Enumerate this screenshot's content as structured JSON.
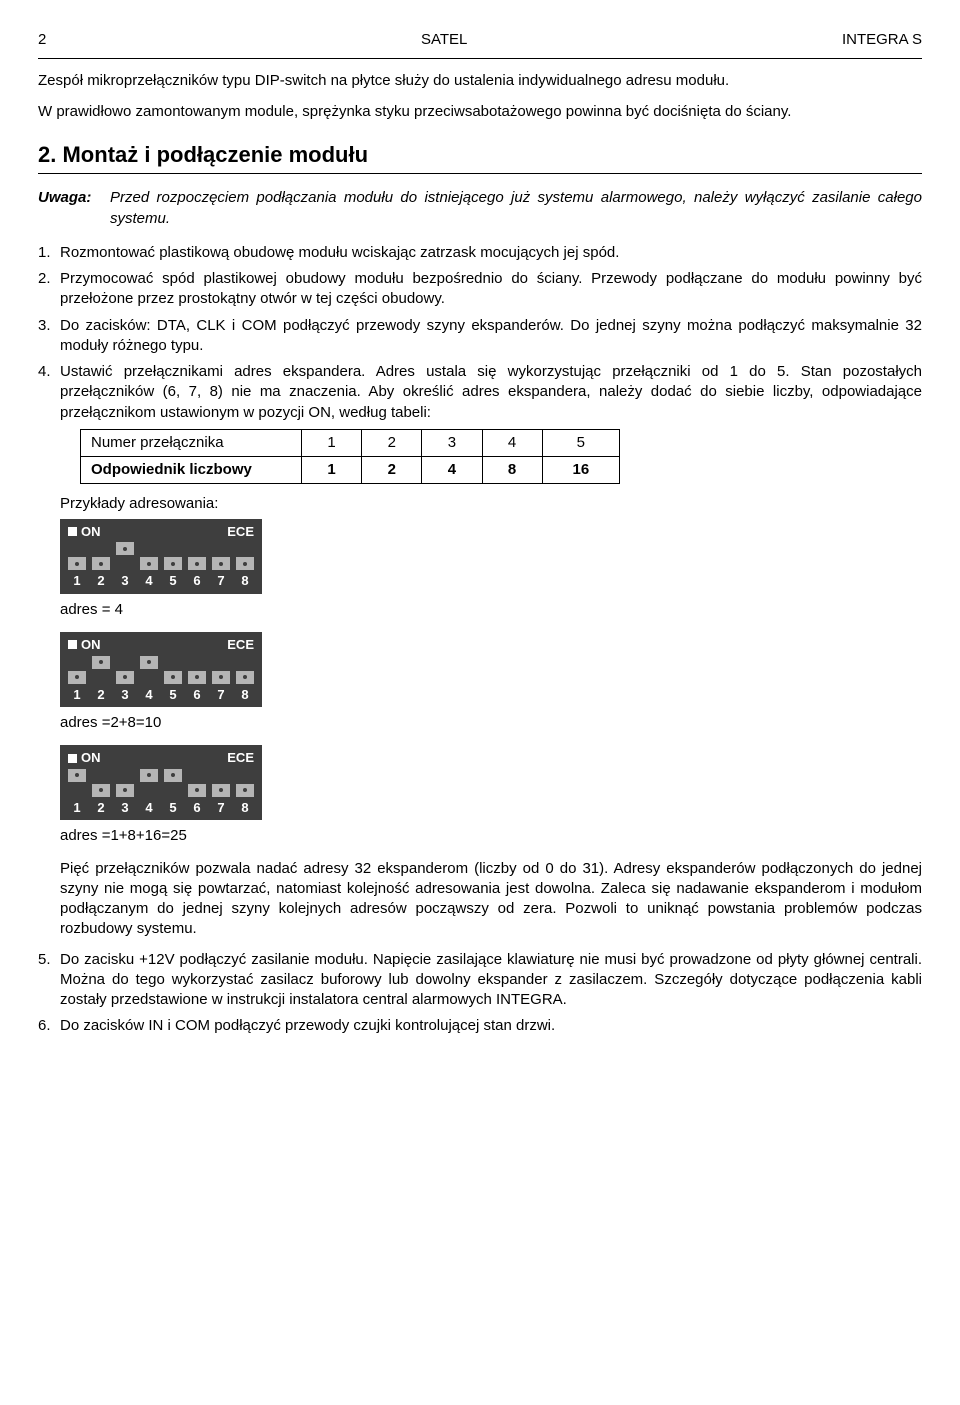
{
  "header": {
    "page": "2",
    "center": "SATEL",
    "right": "INTEGRA S"
  },
  "intro": [
    "Zespół mikroprzełączników typu DIP-switch na płytce służy do ustalenia indywidualnego adresu modułu.",
    "W prawidłowo zamontowanym module, sprężynka styku przeciwsabotażowego powinna być dociśnięta do ściany."
  ],
  "section": {
    "number": "2.",
    "title": "Montaż i podłączenie modułu"
  },
  "uwaga": {
    "label": "Uwaga:",
    "text": "Przed rozpoczęciem podłączania modułu do istniejącego już systemu alarmowego, należy wyłączyć zasilanie całego systemu."
  },
  "steps": [
    {
      "n": "1.",
      "t": "Rozmontować plastikową obudowę modułu wciskając zatrzask mocujących jej spód."
    },
    {
      "n": "2.",
      "t": "Przymocować spód plastikowej obudowy modułu bezpośrednio do ściany. Przewody podłączane do modułu powinny być przełożone przez prostokątny otwór w tej części obudowy."
    },
    {
      "n": "3.",
      "t": "Do zacisków: DTA, CLK i COM podłączyć przewody szyny ekspanderów. Do jednej szyny można podłączyć maksymalnie 32 moduły różnego typu."
    },
    {
      "n": "4.",
      "t": "Ustawić przełącznikami adres ekspandera. Adres ustala się wykorzystując przełączniki od 1 do 5. Stan pozostałych przełączników (6, 7, 8) nie ma znaczenia. Aby określić adres ekspandera, należy dodać do siebie liczby, odpowiadające przełącznikom ustawionym w pozycji ON, według tabeli:"
    }
  ],
  "table": {
    "row1": [
      "Numer przełącznika",
      "1",
      "2",
      "3",
      "4",
      "5"
    ],
    "row2": [
      "Odpowiednik liczbowy",
      "1",
      "2",
      "4",
      "8",
      "16"
    ]
  },
  "examples_label": "Przykłady adresowania:",
  "dip_labels": {
    "on": "ON",
    "ece": "ECE",
    "nums": [
      "1",
      "2",
      "3",
      "4",
      "5",
      "6",
      "7",
      "8"
    ]
  },
  "dips": [
    {
      "on": [
        false,
        false,
        true,
        false,
        false,
        false,
        false,
        false
      ],
      "caption": "adres = 4"
    },
    {
      "on": [
        false,
        true,
        false,
        true,
        false,
        false,
        false,
        false
      ],
      "caption": "adres =2+8=10"
    },
    {
      "on": [
        true,
        false,
        false,
        true,
        true,
        false,
        false,
        false
      ],
      "caption": "adres =1+8+16=25"
    }
  ],
  "after_dips": "Pięć przełączników pozwala nadać adresy 32 ekspanderom (liczby od 0 do 31). Adresy ekspanderów podłączonych do jednej szyny nie mogą się powtarzać, natomiast kolejność adresowania jest dowolna. Zaleca się nadawanie ekspanderom i modułom podłączanym do jednej szyny kolejnych adresów począwszy od zera. Pozwoli to uniknąć powstania problemów podczas rozbudowy systemu.",
  "steps2": [
    {
      "n": "5.",
      "t": "Do zacisku +12V podłączyć zasilanie modułu. Napięcie zasilające klawiaturę nie musi być prowadzone od płyty głównej centrali. Można do tego wykorzystać zasilacz buforowy lub dowolny ekspander z zasilaczem. Szczegóły dotyczące podłączenia kabli zostały przedstawione w instrukcji instalatora central alarmowych INTEGRA."
    },
    {
      "n": "6.",
      "t": "Do zacisków IN i COM podłączyć przewody czujki kontrolującej stan drzwi."
    }
  ],
  "colors": {
    "dip_bg": "#3e3e3e",
    "switch": "#b5b5b5",
    "text_white": "#ffffff"
  }
}
